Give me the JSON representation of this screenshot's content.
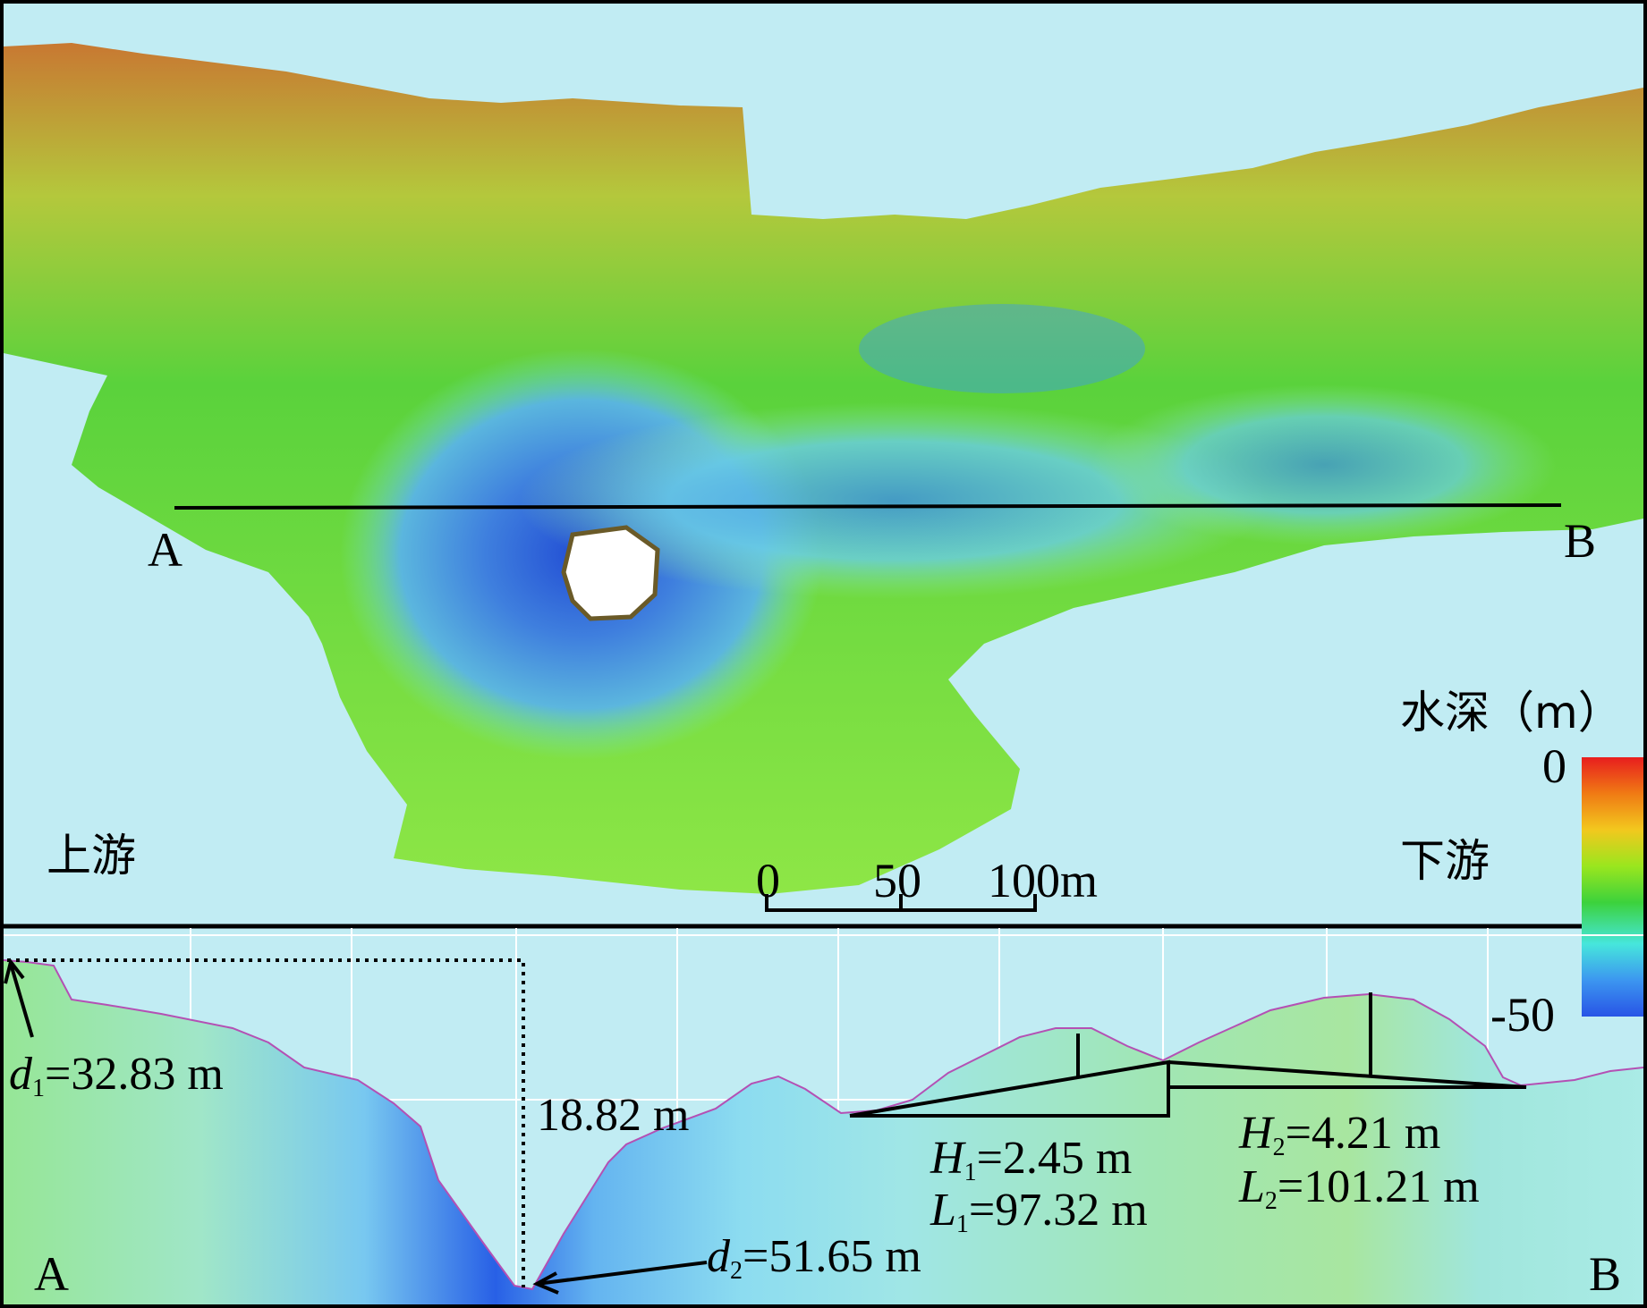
{
  "map": {
    "point_a": "A",
    "point_b": "B",
    "upstream": "上游",
    "downstream": "下游",
    "scale_ticks": [
      "0",
      "50",
      "100m"
    ]
  },
  "legend": {
    "title": "水深（m）",
    "max": "0",
    "min": "-50",
    "colors": [
      "#e81e1e",
      "#f07a14",
      "#f2c81e",
      "#9ae61e",
      "#3cd23c",
      "#46e6dc",
      "#3c96f0",
      "#2854e6"
    ]
  },
  "profile": {
    "point_a": "A",
    "point_b": "B",
    "d1_var": "d",
    "d1_sub": "1",
    "d1_value": "=32.83 m",
    "d2_var": "d",
    "d2_sub": "2",
    "d2_value": "=51.65 m",
    "diff": "18.82 m",
    "h1_var": "H",
    "h1_sub": "1",
    "h1_value": "=2.45 m",
    "l1_var": "L",
    "l1_sub": "1",
    "l1_value": "=97.32 m",
    "h2_var": "H",
    "h2_sub": "2",
    "h2_value": "=4.21 m",
    "l2_var": "L",
    "l2_sub": "2",
    "l2_value": "=101.21 m"
  }
}
